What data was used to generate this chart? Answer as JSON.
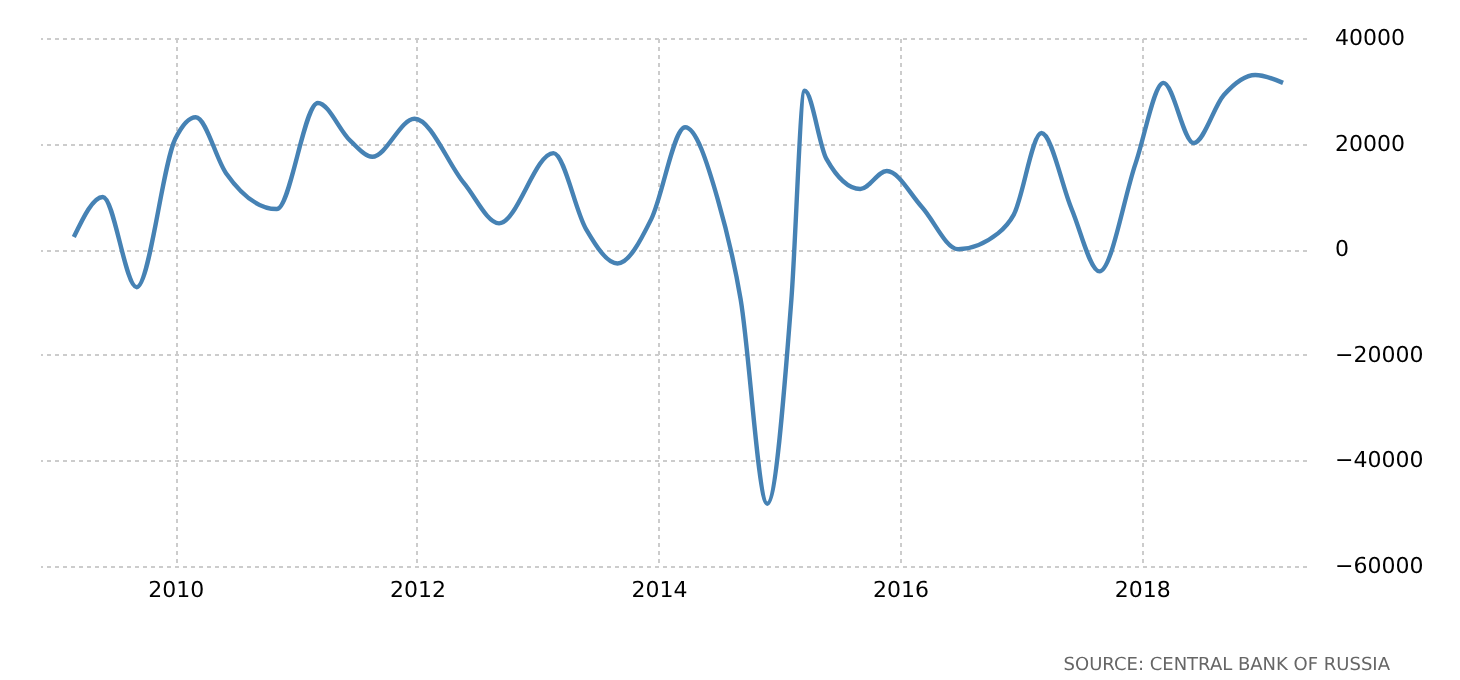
{
  "chart_data": {
    "type": "line",
    "x": [
      2009.16,
      2009.4,
      2009.68,
      2010.0,
      2010.17,
      2010.42,
      2010.84,
      2011.18,
      2011.45,
      2011.63,
      2011.98,
      2012.39,
      2012.68,
      2013.13,
      2013.4,
      2013.66,
      2013.94,
      2014.22,
      2014.49,
      2014.68,
      2014.9,
      2015.1,
      2015.21,
      2015.39,
      2015.67,
      2015.89,
      2016.18,
      2016.48,
      2016.81,
      2016.94,
      2017.17,
      2017.42,
      2017.65,
      2017.95,
      2018.18,
      2018.43,
      2018.68,
      2018.94,
      2019.17
    ],
    "series": [
      {
        "color": "#4682b4",
        "values": [
          2300,
          9900,
          -7200,
          20900,
          25000,
          14400,
          7600,
          27700,
          20500,
          17500,
          24700,
          12500,
          4900,
          18200,
          3800,
          -2700,
          5700,
          23100,
          9500,
          -9500,
          -48200,
          -9500,
          30000,
          17100,
          11400,
          14800,
          8000,
          0,
          3000,
          6500,
          22000,
          7600,
          -4200,
          16300,
          31500,
          20100,
          29200,
          33000,
          31500
        ]
      }
    ],
    "xlim": [
      2008.88,
      2019.36
    ],
    "xticks": [
      2010,
      2012,
      2014,
      2016,
      2018
    ],
    "ylim": [
      -60000,
      40000
    ],
    "yticks": [
      -60000,
      -40000,
      -20000,
      0,
      20000,
      40000
    ],
    "grid": true,
    "marker": "none",
    "line_style": "solid",
    "annotations": [
      "SOURCE: CENTRAL BANK OF RUSSIA"
    ]
  }
}
